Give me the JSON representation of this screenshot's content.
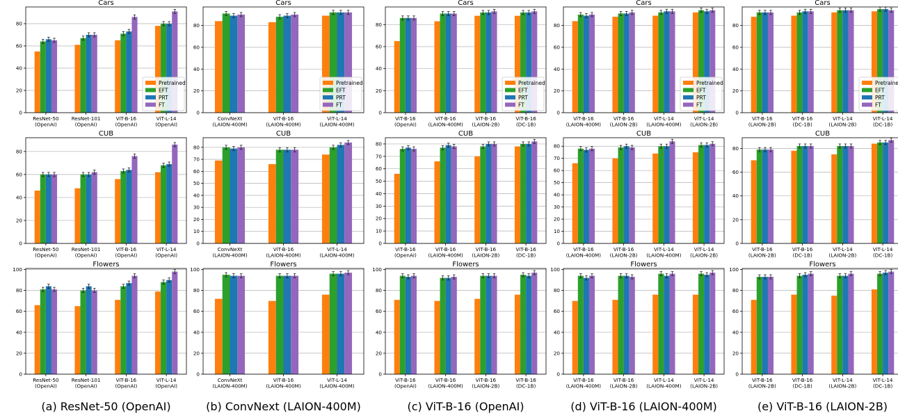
{
  "series_colors": {
    "Pretrained": "#ff7f0e",
    "EFT": "#2ca02c",
    "PRT": "#1f77b4",
    "FT": "#9467bd"
  },
  "captions": [
    "(a) ResNet-50 (OpenAI)",
    "(b) ConvNext (LAION-400M)",
    "(c) ViT-B-16 (OpenAI)",
    "(d) ViT-B-16 (LAION-400M)",
    "(e) ViT-B-16 (LAION-2B)"
  ],
  "chart_data": [
    {
      "type": "bar",
      "column": 0,
      "row": 0,
      "title": "Cars",
      "ylim": [
        0,
        95
      ],
      "yticks": [
        0,
        20,
        40,
        60,
        80
      ],
      "grid": true,
      "legend": "bottom-right",
      "categories": [
        [
          "ResNet-50",
          "(OpenAI)"
        ],
        [
          "ResNet-101",
          "(OpenAI)"
        ],
        [
          "ViT-B-16",
          "(OpenAI)"
        ],
        [
          "ViT-L-14",
          "(OpenAI)"
        ]
      ],
      "series": [
        {
          "name": "Pretrained",
          "values": [
            55,
            61,
            65,
            78
          ]
        },
        {
          "name": "EFT",
          "values": [
            64,
            67,
            71,
            80
          ]
        },
        {
          "name": "PRT",
          "values": [
            66,
            70,
            73,
            80
          ]
        },
        {
          "name": "FT",
          "values": [
            65,
            70,
            86,
            91
          ]
        }
      ]
    },
    {
      "type": "bar",
      "column": 0,
      "row": 1,
      "title": "CUB",
      "ylim": [
        0,
        92
      ],
      "yticks": [
        0,
        20,
        40,
        60,
        80
      ],
      "grid": true,
      "categories": [
        [
          "ResNet-50",
          "(OpenAI)"
        ],
        [
          "ResNet-101",
          "(OpenAI)"
        ],
        [
          "ViT-B-16",
          "(OpenAI)"
        ],
        [
          "ViT-L-14",
          "(OpenAI)"
        ]
      ],
      "series": [
        {
          "name": "Pretrained",
          "values": [
            46,
            48,
            56,
            62
          ]
        },
        {
          "name": "EFT",
          "values": [
            60,
            60,
            63,
            68
          ]
        },
        {
          "name": "PRT",
          "values": [
            60,
            60,
            64,
            69
          ]
        },
        {
          "name": "FT",
          "values": [
            60,
            62,
            76,
            86
          ]
        }
      ]
    },
    {
      "type": "bar",
      "column": 0,
      "row": 2,
      "title": "Flowers",
      "ylim": [
        0,
        101
      ],
      "yticks": [
        0,
        20,
        40,
        60,
        80,
        100
      ],
      "grid": true,
      "categories": [
        [
          "ResNet-50",
          "(OpenAI)"
        ],
        [
          "ResNet-101",
          "(OpenAI)"
        ],
        [
          "ViT-B-16",
          "(OpenAI)"
        ],
        [
          "ViT-L-14",
          "(OpenAI)"
        ]
      ],
      "series": [
        {
          "name": "Pretrained",
          "values": [
            66,
            65,
            71,
            79
          ]
        },
        {
          "name": "EFT",
          "values": [
            81,
            80,
            84,
            88
          ]
        },
        {
          "name": "PRT",
          "values": [
            84,
            84,
            87,
            90
          ]
        },
        {
          "name": "FT",
          "values": [
            81,
            80,
            94,
            98
          ]
        }
      ]
    },
    {
      "type": "bar",
      "column": 1,
      "row": 0,
      "title": "Cars",
      "ylim": [
        0,
        97
      ],
      "yticks": [
        0,
        20,
        40,
        60,
        80
      ],
      "grid": true,
      "legend": "bottom-right",
      "categories": [
        [
          "ConvNeXt",
          "(LAION-400M)"
        ],
        [
          "ViT-B-16",
          "(LAION-400M)"
        ],
        [
          "ViT-L-14",
          "(LAION-400M)"
        ]
      ],
      "series": [
        {
          "name": "Pretrained",
          "values": [
            84,
            83,
            89
          ]
        },
        {
          "name": "EFT",
          "values": [
            91,
            88,
            92
          ]
        },
        {
          "name": "PRT",
          "values": [
            89,
            89,
            92
          ]
        },
        {
          "name": "FT",
          "values": [
            90,
            90,
            92
          ]
        }
      ]
    },
    {
      "type": "bar",
      "column": 1,
      "row": 1,
      "title": "CUB",
      "ylim": [
        0,
        88
      ],
      "yticks": [
        0,
        10,
        20,
        30,
        40,
        50,
        60,
        70,
        80
      ],
      "grid": true,
      "categories": [
        [
          "ConvNeXt",
          "(LAION-400M)"
        ],
        [
          "ViT-B-16",
          "(LAION-400M)"
        ],
        [
          "ViT-L-14",
          "(LAION-400M)"
        ]
      ],
      "series": [
        {
          "name": "Pretrained",
          "values": [
            69,
            66,
            74
          ]
        },
        {
          "name": "EFT",
          "values": [
            80,
            78,
            80
          ]
        },
        {
          "name": "PRT",
          "values": [
            79,
            78,
            82
          ]
        },
        {
          "name": "FT",
          "values": [
            80,
            78,
            84
          ]
        }
      ]
    },
    {
      "type": "bar",
      "column": 1,
      "row": 2,
      "title": "Flowers",
      "ylim": [
        0,
        101
      ],
      "yticks": [
        0,
        20,
        40,
        60,
        80,
        100
      ],
      "grid": true,
      "categories": [
        [
          "ConvNeXt",
          "(LAION-400M)"
        ],
        [
          "ViT-B-16",
          "(LAION-400M)"
        ],
        [
          "ViT-L-14",
          "(LAION-400M)"
        ]
      ],
      "series": [
        {
          "name": "Pretrained",
          "values": [
            72,
            70,
            76
          ]
        },
        {
          "name": "EFT",
          "values": [
            95,
            94,
            96
          ]
        },
        {
          "name": "PRT",
          "values": [
            94,
            94,
            96
          ]
        },
        {
          "name": "FT",
          "values": [
            94,
            94,
            97
          ]
        }
      ]
    },
    {
      "type": "bar",
      "column": 2,
      "row": 0,
      "title": "Cars",
      "ylim": [
        0,
        96
      ],
      "yticks": [
        0,
        20,
        40,
        60,
        80
      ],
      "grid": true,
      "legend": "bottom-right",
      "categories": [
        [
          "ViT-B-16",
          "(OpenAI)"
        ],
        [
          "ViT-B-16",
          "(LAION-400M)"
        ],
        [
          "ViT-B-16",
          "(LAION-2B)"
        ],
        [
          "ViT-B-16",
          "(DC-1B)"
        ]
      ],
      "series": [
        {
          "name": "Pretrained",
          "values": [
            65,
            83,
            88,
            88
          ]
        },
        {
          "name": "EFT",
          "values": [
            86,
            90,
            91,
            91
          ]
        },
        {
          "name": "PRT",
          "values": [
            86,
            90,
            91,
            91
          ]
        },
        {
          "name": "FT",
          "values": [
            86,
            90,
            92,
            92
          ]
        }
      ]
    },
    {
      "type": "bar",
      "column": 2,
      "row": 1,
      "title": "CUB",
      "ylim": [
        0,
        85
      ],
      "yticks": [
        0,
        10,
        20,
        30,
        40,
        50,
        60,
        70,
        80
      ],
      "grid": true,
      "categories": [
        [
          "ViT-B-16",
          "(OpenAI)"
        ],
        [
          "ViT-B-16",
          "(LAION-400M)"
        ],
        [
          "ViT-B-16",
          "(LAION-2B)"
        ],
        [
          "ViT-B-16",
          "(DC-1B)"
        ]
      ],
      "series": [
        {
          "name": "Pretrained",
          "values": [
            56,
            66,
            70,
            78
          ]
        },
        {
          "name": "EFT",
          "values": [
            76,
            77,
            78,
            80
          ]
        },
        {
          "name": "PRT",
          "values": [
            77,
            79,
            80,
            80
          ]
        },
        {
          "name": "FT",
          "values": [
            76,
            78,
            80,
            82
          ]
        }
      ]
    },
    {
      "type": "bar",
      "column": 2,
      "row": 2,
      "title": "Flowers",
      "ylim": [
        0,
        101
      ],
      "yticks": [
        0,
        20,
        40,
        60,
        80,
        100
      ],
      "grid": true,
      "categories": [
        [
          "ViT-B-16",
          "(OpenAI)"
        ],
        [
          "ViT-B-16",
          "(LAION-400M)"
        ],
        [
          "ViT-B-16",
          "(LAION-2B)"
        ],
        [
          "ViT-B-16",
          "(DC-1B)"
        ]
      ],
      "series": [
        {
          "name": "Pretrained",
          "values": [
            71,
            70,
            72,
            76
          ]
        },
        {
          "name": "EFT",
          "values": [
            94,
            92,
            94,
            95
          ]
        },
        {
          "name": "PRT",
          "values": [
            93,
            92,
            94,
            94
          ]
        },
        {
          "name": "FT",
          "values": [
            94,
            93,
            94,
            97
          ]
        }
      ]
    },
    {
      "type": "bar",
      "column": 3,
      "row": 0,
      "title": "Cars",
      "ylim": [
        0,
        97
      ],
      "yticks": [
        0,
        20,
        40,
        60,
        80
      ],
      "grid": true,
      "legend": "bottom-right",
      "categories": [
        [
          "ViT-B-16",
          "(LAION-400M)"
        ],
        [
          "ViT-B-16",
          "(LAION-2B)"
        ],
        [
          "ViT-L-14",
          "(LAION-400M)"
        ],
        [
          "ViT-L-14",
          "(LAION-2B)"
        ]
      ],
      "series": [
        {
          "name": "Pretrained",
          "values": [
            84,
            88,
            89,
            92
          ]
        },
        {
          "name": "EFT",
          "values": [
            90,
            91,
            92,
            94
          ]
        },
        {
          "name": "PRT",
          "values": [
            89,
            91,
            93,
            93
          ]
        },
        {
          "name": "FT",
          "values": [
            90,
            92,
            93,
            94
          ]
        }
      ]
    },
    {
      "type": "bar",
      "column": 3,
      "row": 1,
      "title": "CUB",
      "ylim": [
        0,
        87
      ],
      "yticks": [
        0,
        10,
        20,
        30,
        40,
        50,
        60,
        70,
        80
      ],
      "grid": true,
      "categories": [
        [
          "ViT-B-16",
          "(LAION-400M)"
        ],
        [
          "ViT-B-16",
          "(LAION-2B)"
        ],
        [
          "ViT-L-14",
          "(LAION-400M)"
        ],
        [
          "ViT-L-14",
          "(LAION-2B)"
        ]
      ],
      "series": [
        {
          "name": "Pretrained",
          "values": [
            66,
            70,
            74,
            75
          ]
        },
        {
          "name": "EFT",
          "values": [
            78,
            79,
            80,
            81
          ]
        },
        {
          "name": "PRT",
          "values": [
            77,
            80,
            80,
            81
          ]
        },
        {
          "name": "FT",
          "values": [
            78,
            79,
            84,
            82
          ]
        }
      ]
    },
    {
      "type": "bar",
      "column": 3,
      "row": 2,
      "title": "Flowers",
      "ylim": [
        0,
        101
      ],
      "yticks": [
        0,
        20,
        40,
        60,
        80,
        100
      ],
      "grid": true,
      "categories": [
        [
          "ViT-B-16",
          "(LAION-400M)"
        ],
        [
          "ViT-B-16",
          "(LAION-2B)"
        ],
        [
          "ViT-L-14",
          "(LAION-400M)"
        ],
        [
          "ViT-L-14",
          "(LAION-2B)"
        ]
      ],
      "series": [
        {
          "name": "Pretrained",
          "values": [
            70,
            71,
            76,
            76
          ]
        },
        {
          "name": "EFT",
          "values": [
            94,
            94,
            96,
            96
          ]
        },
        {
          "name": "PRT",
          "values": [
            92,
            94,
            94,
            95
          ]
        },
        {
          "name": "FT",
          "values": [
            94,
            93,
            96,
            97
          ]
        }
      ]
    },
    {
      "type": "bar",
      "column": 4,
      "row": 0,
      "title": "Cars",
      "ylim": [
        0,
        97
      ],
      "yticks": [
        0,
        20,
        40,
        60,
        80
      ],
      "grid": true,
      "legend": "bottom-right",
      "categories": [
        [
          "ViT-B-16",
          "(LAION-2B)"
        ],
        [
          "ViT-B-16",
          "(DC-1B)"
        ],
        [
          "ViT-L-14",
          "(LAION-2B)"
        ],
        [
          "ViT-L-14",
          "(DC-1B)"
        ]
      ],
      "series": [
        {
          "name": "Pretrained",
          "values": [
            88,
            89,
            92,
            93
          ]
        },
        {
          "name": "EFT",
          "values": [
            92,
            92,
            94,
            95
          ]
        },
        {
          "name": "PRT",
          "values": [
            92,
            93,
            94,
            95
          ]
        },
        {
          "name": "FT",
          "values": [
            92,
            93,
            94,
            94
          ]
        }
      ]
    },
    {
      "type": "bar",
      "column": 4,
      "row": 1,
      "title": "CUB",
      "ylim": [
        0,
        89
      ],
      "yticks": [
        0,
        20,
        40,
        60,
        80
      ],
      "grid": true,
      "categories": [
        [
          "ViT-B-16",
          "(LAION-2B)"
        ],
        [
          "ViT-B-16",
          "(DC-1B)"
        ],
        [
          "ViT-L-14",
          "(LAION-2B)"
        ],
        [
          "ViT-L-14",
          "(DC-1B)"
        ]
      ],
      "series": [
        {
          "name": "Pretrained",
          "values": [
            70,
            78,
            75,
            84
          ]
        },
        {
          "name": "EFT",
          "values": [
            79,
            82,
            82,
            85
          ]
        },
        {
          "name": "PRT",
          "values": [
            79,
            82,
            82,
            85
          ]
        },
        {
          "name": "FT",
          "values": [
            79,
            82,
            82,
            87
          ]
        }
      ]
    },
    {
      "type": "bar",
      "column": 4,
      "row": 2,
      "title": "Flowers",
      "ylim": [
        0,
        101
      ],
      "yticks": [
        0,
        20,
        40,
        60,
        80,
        100
      ],
      "grid": true,
      "categories": [
        [
          "ViT-B-16",
          "(LAION-2B)"
        ],
        [
          "ViT-B-16",
          "(DC-1B)"
        ],
        [
          "ViT-L-14",
          "(LAION-2B)"
        ],
        [
          "ViT-L-14",
          "(DC-1B)"
        ]
      ],
      "series": [
        {
          "name": "Pretrained",
          "values": [
            71,
            76,
            75,
            81
          ]
        },
        {
          "name": "EFT",
          "values": [
            93,
            94,
            94,
            96
          ]
        },
        {
          "name": "PRT",
          "values": [
            93,
            95,
            94,
            97
          ]
        },
        {
          "name": "FT",
          "values": [
            93,
            96,
            96,
            98
          ]
        }
      ]
    }
  ]
}
